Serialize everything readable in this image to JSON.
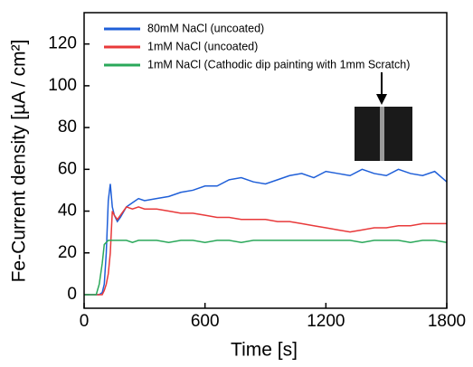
{
  "chart_data": {
    "type": "line",
    "xlabel": "Time [s]",
    "ylabel": "Fe-Current density [µA / cm²]",
    "x": [
      0,
      30,
      60,
      75,
      90,
      100,
      110,
      120,
      130,
      140,
      150,
      165,
      180,
      210,
      240,
      270,
      300,
      360,
      420,
      480,
      540,
      600,
      660,
      720,
      780,
      840,
      900,
      960,
      1020,
      1080,
      1140,
      1200,
      1260,
      1320,
      1380,
      1440,
      1500,
      1560,
      1620,
      1680,
      1740,
      1800
    ],
    "series": [
      {
        "name": "80mM NaCl (uncoated)",
        "color": "#1f5fd8",
        "values": [
          0,
          0,
          0,
          0,
          1,
          5,
          20,
          45,
          53,
          42,
          38,
          35,
          37,
          42,
          44,
          46,
          45,
          46,
          47,
          49,
          50,
          52,
          52,
          55,
          56,
          54,
          53,
          55,
          57,
          58,
          56,
          59,
          58,
          57,
          60,
          58,
          57,
          60,
          58,
          57,
          59,
          54
        ]
      },
      {
        "name": "1mM NaCl (uncoated)",
        "color": "#e8393a",
        "values": [
          0,
          0,
          0,
          0,
          0,
          2,
          5,
          10,
          20,
          40,
          38,
          36,
          38,
          42,
          41,
          42,
          41,
          41,
          40,
          39,
          39,
          38,
          37,
          37,
          36,
          36,
          36,
          35,
          35,
          34,
          33,
          32,
          31,
          30,
          31,
          32,
          32,
          33,
          33,
          34,
          34,
          34
        ]
      },
      {
        "name": "1mM NaCl (Cathodic dip painting with 1mm Scratch)",
        "color": "#2aa85a",
        "values": [
          0,
          0,
          0,
          5,
          15,
          24,
          25,
          26,
          26,
          26,
          26,
          26,
          26,
          26,
          25,
          26,
          26,
          26,
          25,
          26,
          26,
          25,
          26,
          26,
          25,
          26,
          26,
          26,
          26,
          26,
          26,
          26,
          26,
          26,
          25,
          26,
          26,
          26,
          25,
          26,
          26,
          25
        ]
      }
    ],
    "xlim": [
      0,
      1800
    ],
    "xticks": [
      0,
      600,
      1200,
      1800
    ],
    "ylim": [
      -6.5,
      135
    ],
    "yticks": [
      0,
      20,
      40,
      60,
      80,
      100,
      120
    ],
    "legend": "upper left"
  }
}
